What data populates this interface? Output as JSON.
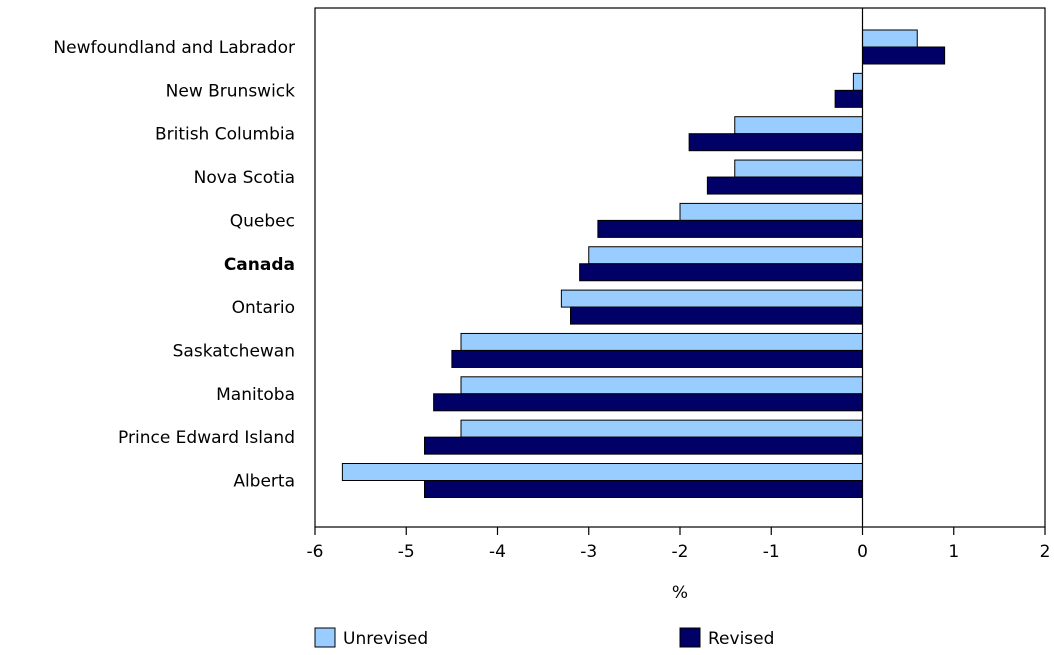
{
  "chart_data": {
    "type": "bar",
    "orientation": "horizontal",
    "categories": [
      "Newfoundland and Labrador",
      "New Brunswick",
      "British Columbia",
      "Nova Scotia",
      "Quebec",
      "Canada",
      "Ontario",
      "Saskatchewan",
      "Manitoba",
      "Prince Edward Island",
      "Alberta"
    ],
    "bold_categories": [
      "Canada"
    ],
    "series": [
      {
        "name": "Unrevised",
        "color": "#99ccff",
        "values": [
          0.6,
          -0.1,
          -1.4,
          -1.4,
          -2.0,
          -3.0,
          -3.3,
          -4.4,
          -4.4,
          -4.4,
          -5.7
        ]
      },
      {
        "name": "Revised",
        "color": "#000066",
        "values": [
          0.9,
          -0.3,
          -1.9,
          -1.7,
          -2.9,
          -3.1,
          -3.2,
          -4.5,
          -4.7,
          -4.8,
          -4.8
        ]
      }
    ],
    "xlabel": "%",
    "ylabel": "",
    "xlim": [
      -6,
      2
    ],
    "xticks": [
      -6,
      -5,
      -4,
      -3,
      -2,
      -1,
      0,
      1,
      2
    ],
    "grid": false,
    "legend_position": "bottom"
  }
}
